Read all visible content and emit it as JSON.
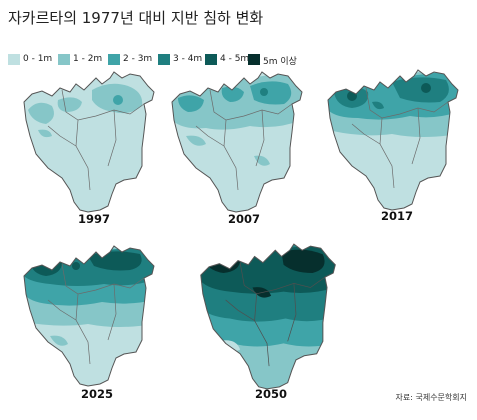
{
  "title": "자카르타의 1977년 대비 지반 침하 변화",
  "legend": [
    {
      "label": "0 - 1m",
      "color": "#bfe0e1"
    },
    {
      "label": "1 - 2m",
      "color": "#86c6c8"
    },
    {
      "label": "2 - 3m",
      "color": "#3fa4a8"
    },
    {
      "label": "3 - 4m",
      "color": "#1f7f80"
    },
    {
      "label": "4 - 5m",
      "color": "#0d5a58"
    },
    {
      "label": "5m 이상",
      "color": "#062f2d"
    }
  ],
  "maps": [
    {
      "year": "1997"
    },
    {
      "year": "2007"
    },
    {
      "year": "2017"
    },
    {
      "year": "2025"
    },
    {
      "year": "2050"
    }
  ],
  "source": "자료: 국제수문학회지"
}
